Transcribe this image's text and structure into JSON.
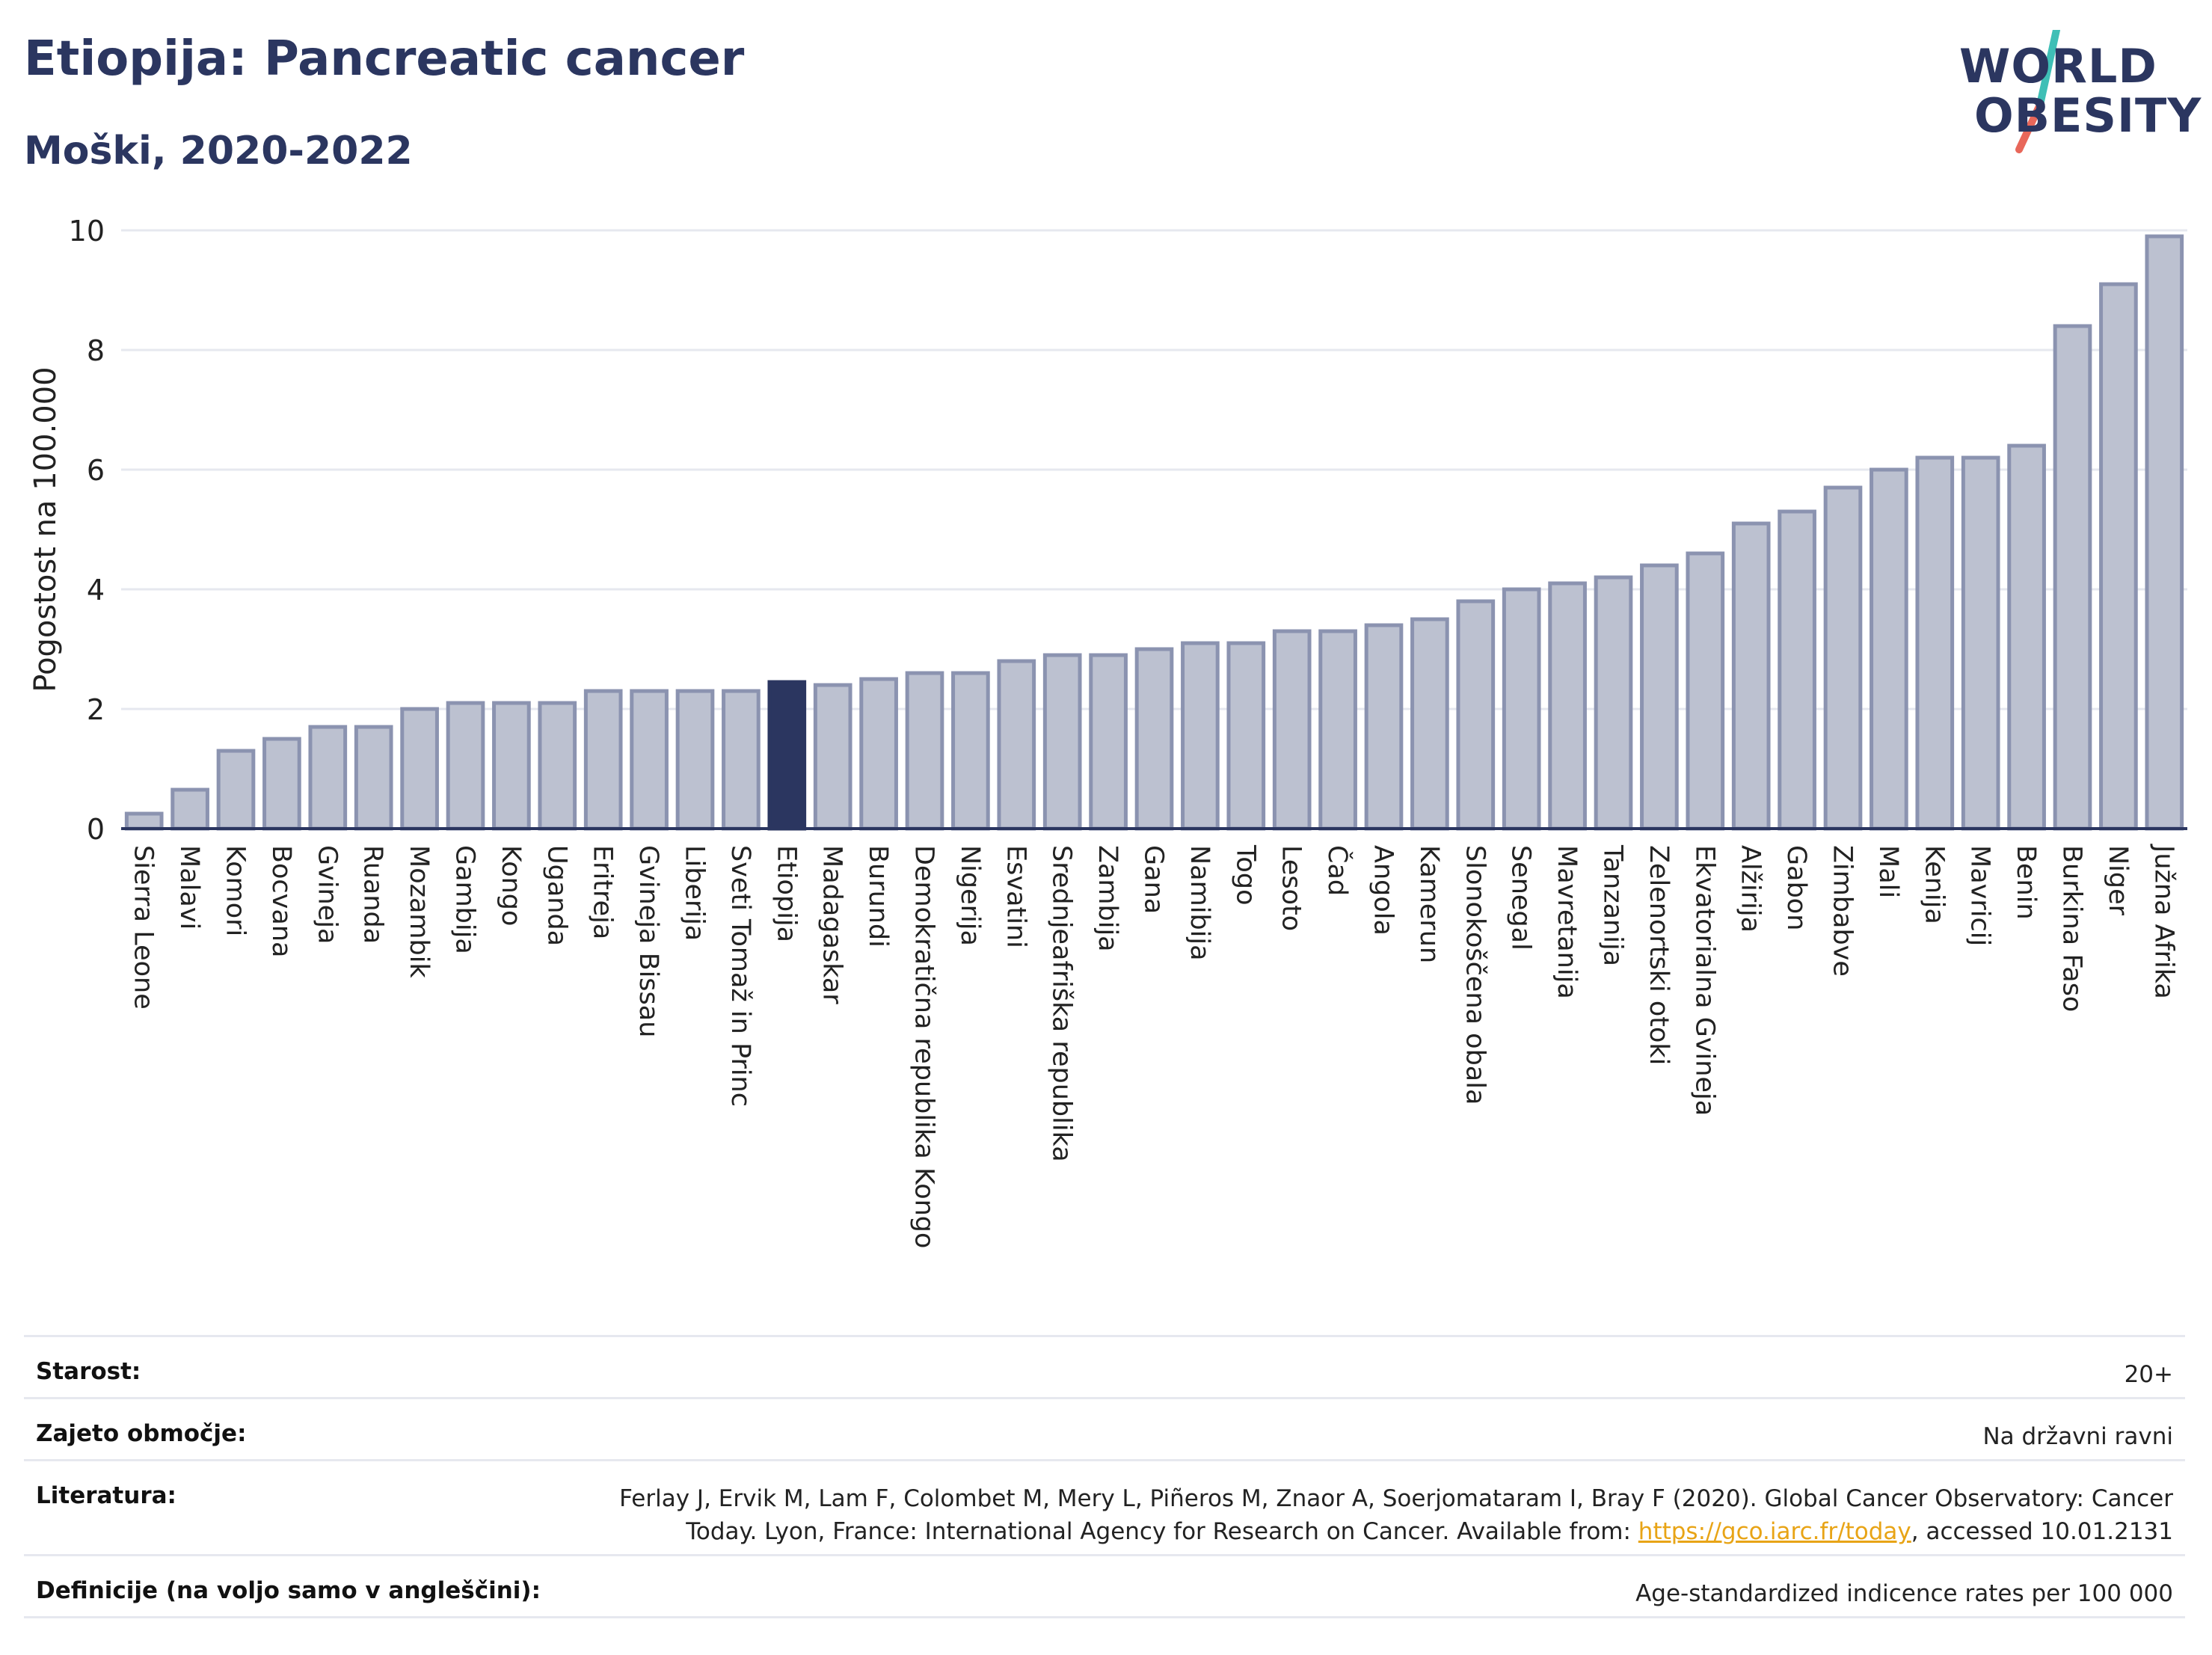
{
  "header": {
    "title": "Etiopija: Pancreatic cancer",
    "subtitle": "Moški, 2020-2022"
  },
  "logo": {
    "line1": "WORLD",
    "line2": "OBESITY"
  },
  "chart_data": {
    "type": "bar",
    "ylabel": "Pogostost na 100.000",
    "ylim": [
      0,
      10
    ],
    "yticks": [
      0,
      2,
      4,
      6,
      8,
      10
    ],
    "grid": true,
    "highlight": "Etiopija",
    "colors": {
      "bar": "#bcc1d0",
      "bar_edge": "#8b93b0",
      "highlight": "#2b3660",
      "grid": "#e6e8ef",
      "axis": "#2b3660"
    },
    "categories": [
      "Sierra Leone",
      "Malavi",
      "Komori",
      "Bocvana",
      "Gvineja",
      "Ruanda",
      "Mozambik",
      "Gambija",
      "Kongo",
      "Uganda",
      "Eritreja",
      "Gvineja Bissau",
      "Liberija",
      "Sveti Tomaž in Princ",
      "Etiopija",
      "Madagaskar",
      "Burundi",
      "Demokratična republika Kongo",
      "Nigerija",
      "Esvatini",
      "Srednjeafriška republika",
      "Zambija",
      "Gana",
      "Namibija",
      "Togo",
      "Lesoto",
      "Čad",
      "Angola",
      "Kamerun",
      "Slonokoščena obala",
      "Senegal",
      "Mavretanija",
      "Tanzanija",
      "Zelenortski otoki",
      "Ekvatorialna Gvineja",
      "Alžirija",
      "Gabon",
      "Zimbabve",
      "Mali",
      "Kenija",
      "Mavricij",
      "Benin",
      "Burkina Faso",
      "Niger",
      "Južna Afrika"
    ],
    "values": [
      0.25,
      0.65,
      1.3,
      1.5,
      1.7,
      1.7,
      2.0,
      2.1,
      2.1,
      2.1,
      2.3,
      2.3,
      2.3,
      2.3,
      2.45,
      2.4,
      2.5,
      2.6,
      2.6,
      2.8,
      2.9,
      2.9,
      3.0,
      3.1,
      3.1,
      3.3,
      3.3,
      3.4,
      3.5,
      3.8,
      4.0,
      4.1,
      4.2,
      4.4,
      4.6,
      5.1,
      5.3,
      5.7,
      6.0,
      6.2,
      6.2,
      6.4,
      8.4,
      9.1,
      9.9
    ]
  },
  "info": {
    "rows": [
      {
        "key": "Starost:",
        "value": "20+"
      },
      {
        "key": "Zajeto območje:",
        "value": "Na državni ravni"
      },
      {
        "key": "Literatura:",
        "value_line1": "Ferlay J, Ervik M, Lam F, Colombet M, Mery L, Piñeros M, Znaor A, Soerjomataram I, Bray F (2020). Global Cancer Observatory: Cancer",
        "value_line2_pre": "Today. Lyon, France: International Agency for Research on Cancer. Available from: ",
        "link": "https://gco.iarc.fr/today",
        "value_line2_post": ", accessed 10.01.2131"
      },
      {
        "key": "Definicije (na voljo samo v angleščini):",
        "value": "Age-standardized indicence rates per 100 000"
      }
    ]
  }
}
